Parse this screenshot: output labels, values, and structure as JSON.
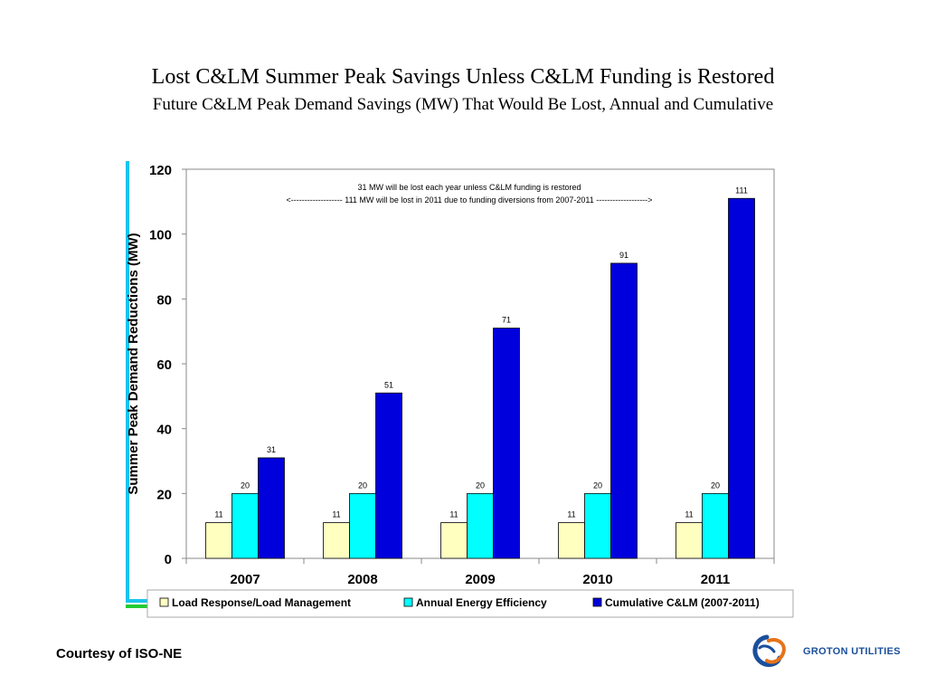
{
  "title": "Lost C&LM Summer Peak Savings Unless C&LM Funding is Restored",
  "subtitle": "Future C&LM Peak Demand Savings (MW) That Would Be Lost, Annual and Cumulative",
  "footer": {
    "courtesy": "Courtesy of ISO-NE"
  },
  "logo": {
    "text": "GROTON UTILITIES",
    "icon": "groton-utilities-logo-icon"
  },
  "colors": {
    "load_response": "#ffffc0",
    "energy_efficiency": "#00ffff",
    "cumulative": "#0000dd",
    "side_bar_blue": "#19c3ee",
    "side_bar_green": "#22cc33"
  },
  "chart_data": {
    "type": "bar",
    "categories": [
      "2007",
      "2008",
      "2009",
      "2010",
      "2011"
    ],
    "series": [
      {
        "name": "Load Response/Load Management",
        "values": [
          11,
          11,
          11,
          11,
          11
        ]
      },
      {
        "name": "Annual Energy Efficiency",
        "values": [
          20,
          20,
          20,
          20,
          20
        ]
      },
      {
        "name": "Cumulative C&LM (2007-2011)",
        "values": [
          31,
          51,
          71,
          91,
          111
        ]
      }
    ],
    "ylabel": "Summer Peak Demand Reductions (MW)",
    "xlabel": "",
    "ylim": [
      0,
      120
    ],
    "yticks": [
      0,
      20,
      40,
      60,
      80,
      100,
      120
    ],
    "grid": false,
    "legend": "bottom",
    "annotations": [
      "31 MW will be lost each year unless C&LM funding is restored",
      "<------------------- 111 MW will be lost in 2011 due to funding diversions from 2007-2011 ------------------->"
    ]
  }
}
